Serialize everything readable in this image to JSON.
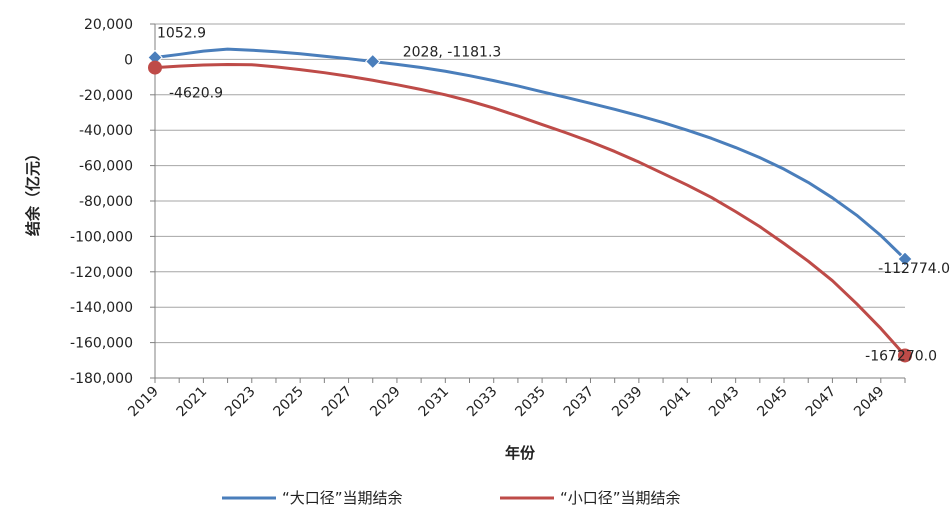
{
  "chart_data": {
    "type": "line",
    "title": "",
    "xlabel": "年份",
    "ylabel": "结余（亿元）",
    "ylim": [
      -180000,
      20000
    ],
    "yticks": [
      20000,
      0,
      -20000,
      -40000,
      -60000,
      -80000,
      -100000,
      -120000,
      -140000,
      -160000,
      -180000
    ],
    "ytick_labels": [
      "20,000",
      "0",
      "-20,000",
      "-40,000",
      "-60,000",
      "-80,000",
      "-100,000",
      "-120,000",
      "-140,000",
      "-160,000",
      "-180,000"
    ],
    "xlim": [
      2019,
      2050
    ],
    "xticks": [
      2019,
      2021,
      2023,
      2025,
      2027,
      2029,
      2031,
      2033,
      2035,
      2037,
      2039,
      2041,
      2043,
      2045,
      2047,
      2049
    ],
    "grid": "horizontal",
    "legend_position": "bottom",
    "colors": {
      "large": "#4a7ebb",
      "small": "#be4b48",
      "grid": "#a6a6a6",
      "axis": "#808080"
    },
    "series": [
      {
        "name": "“大口径”当期结余",
        "color": "#4a7ebb",
        "marker": "diamond",
        "x": [
          2019,
          2020,
          2021,
          2022,
          2023,
          2024,
          2025,
          2026,
          2027,
          2028,
          2029,
          2030,
          2031,
          2032,
          2033,
          2034,
          2035,
          2036,
          2037,
          2038,
          2039,
          2040,
          2041,
          2042,
          2043,
          2044,
          2045,
          2046,
          2047,
          2048,
          2049,
          2050
        ],
        "values": [
          1052.9,
          2800,
          4700,
          5800,
          5200,
          4300,
          3200,
          1800,
          400,
          -1181.3,
          -2800,
          -4600,
          -6700,
          -9200,
          -12000,
          -15000,
          -18300,
          -21500,
          -24800,
          -28200,
          -31800,
          -35700,
          -40000,
          -44600,
          -49800,
          -55500,
          -62000,
          -69500,
          -78200,
          -88000,
          -99500,
          -112774.0
        ],
        "markers": [
          {
            "x": 2019,
            "y": 1052.9,
            "label": "1052.9"
          },
          {
            "x": 2028,
            "y": -1181.3,
            "label": "2028, -1181.3"
          },
          {
            "x": 2050,
            "y": -112774.0,
            "label": "-112774.0"
          }
        ]
      },
      {
        "name": "“小口径”当期结余",
        "color": "#be4b48",
        "marker": "circle",
        "x": [
          2019,
          2020,
          2021,
          2022,
          2023,
          2024,
          2025,
          2026,
          2027,
          2028,
          2029,
          2030,
          2031,
          2032,
          2033,
          2034,
          2035,
          2036,
          2037,
          2038,
          2039,
          2040,
          2041,
          2042,
          2043,
          2044,
          2045,
          2046,
          2047,
          2048,
          2049,
          2050
        ],
        "values": [
          -4620.9,
          -3800,
          -3200,
          -2900,
          -3000,
          -4200,
          -5800,
          -7500,
          -9500,
          -11800,
          -14300,
          -17000,
          -20000,
          -23500,
          -27500,
          -32000,
          -36800,
          -41500,
          -46500,
          -52000,
          -58000,
          -64500,
          -71000,
          -78000,
          -86000,
          -94500,
          -104000,
          -114000,
          -125000,
          -138000,
          -152000,
          -167270.0
        ],
        "markers": [
          {
            "x": 2019,
            "y": -4620.9,
            "label": "-4620.9"
          },
          {
            "x": 2050,
            "y": -167270.0,
            "label": "-167270.0"
          }
        ]
      }
    ]
  }
}
